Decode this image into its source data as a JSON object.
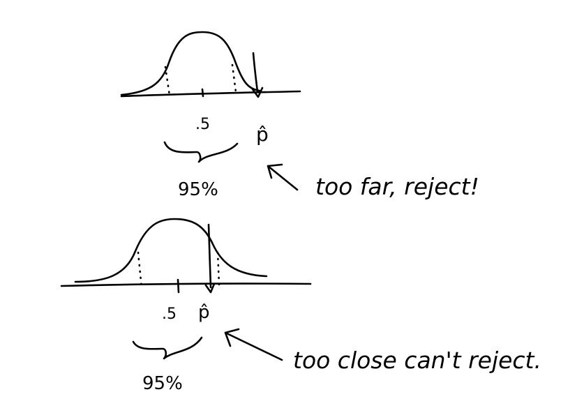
{
  "top": {
    "center_label": ".5",
    "phat_label": "p̂",
    "area_label": "95%",
    "note": "too far, reject!"
  },
  "bottom": {
    "center_label": ".5",
    "phat_label": "p̂",
    "area_label": "95%",
    "note": "too close can't reject."
  }
}
